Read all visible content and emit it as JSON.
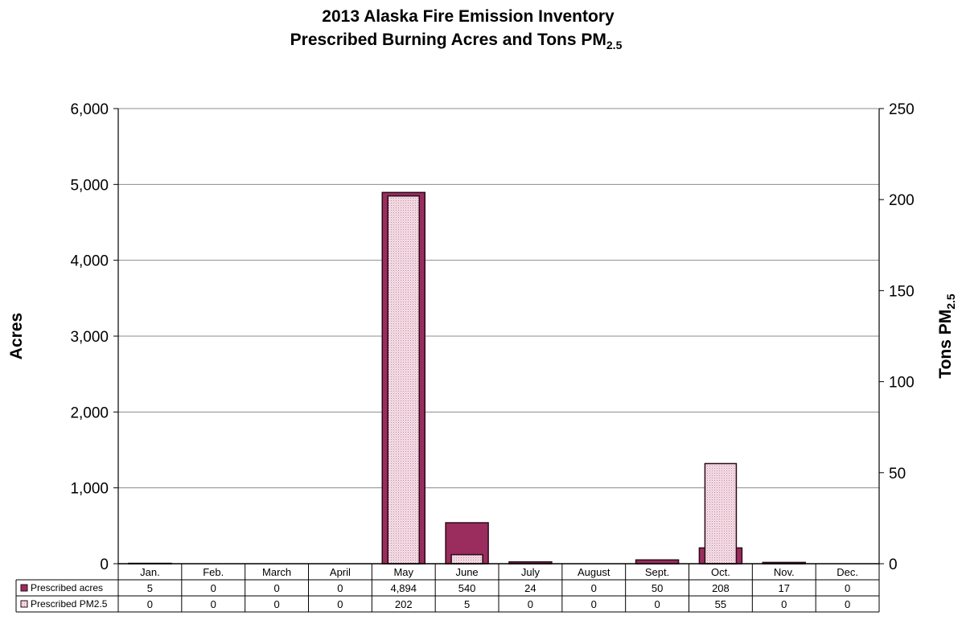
{
  "chart_data": {
    "type": "bar",
    "title": "2013 Alaska Fire Emission Inventory",
    "subtitle_main": "Prescribed Burning Acres and Tons PM",
    "subtitle_sub": "2.5",
    "ylabel": "Acres",
    "y2label_main": "Tons PM",
    "y2label_sub": "2.5",
    "ylim": [
      0,
      6000
    ],
    "y2lim": [
      0,
      250
    ],
    "yticks": [
      "0",
      "1,000",
      "2,000",
      "3,000",
      "4,000",
      "5,000",
      "6,000"
    ],
    "y2ticks": [
      "0",
      "50",
      "100",
      "150",
      "200",
      "250"
    ],
    "categories": [
      "Jan.",
      "Feb.",
      "March",
      "April",
      "May",
      "June",
      "July",
      "August",
      "Sept.",
      "Oct.",
      "Nov.",
      "Dec."
    ],
    "grid": true,
    "legend": "data-table",
    "series": [
      {
        "name": "Prescribed acres",
        "axis": "left",
        "color": "#9b2c5e",
        "values": [
          5,
          0,
          0,
          0,
          4894,
          540,
          24,
          0,
          50,
          208,
          17,
          0
        ],
        "labels": [
          "5",
          "0",
          "0",
          "0",
          "4,894",
          "540",
          "24",
          "0",
          "50",
          "208",
          "17",
          "0"
        ]
      },
      {
        "name": "Prescribed PM2.5",
        "axis": "right",
        "color": "#f6dde6",
        "values": [
          0,
          0,
          0,
          0,
          202,
          5,
          0,
          0,
          0,
          55,
          0,
          0
        ],
        "labels": [
          "0",
          "0",
          "0",
          "0",
          "202",
          "5",
          "0",
          "0",
          "0",
          "55",
          "0",
          "0"
        ]
      }
    ]
  }
}
